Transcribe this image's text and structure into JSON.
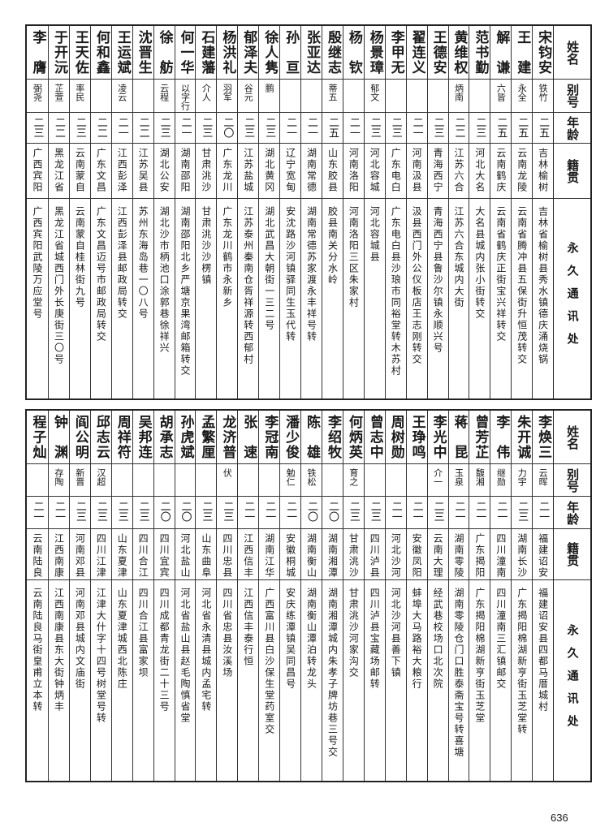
{
  "header": {
    "name": "姓名",
    "alias": "别号",
    "age": "年龄",
    "origin": "籍贯",
    "address": "永久通讯处"
  },
  "top_table": [
    {
      "name": "宋钧安",
      "alias": "铁竹",
      "age": "二五",
      "origin": "吉林榆树",
      "address": "吉林省榆树县秀水镇德庆涌烧锅"
    },
    {
      "name": "王建",
      "alias": "永全",
      "age": "二五",
      "origin": "云南龙陵",
      "address": "云南省腾冲县五保街升恒茂转交"
    },
    {
      "name": "解谦",
      "alias": "六皆",
      "age": "二五",
      "origin": "云南鹤庆",
      "address": "云南省鹤庆正街宝兴祥转交"
    },
    {
      "name": "范书勤",
      "alias": "",
      "age": "二三",
      "origin": "河北大名",
      "address": "大名县城内张小街转交"
    },
    {
      "name": "黄维权",
      "alias": "炳南",
      "age": "二二",
      "origin": "江苏六合",
      "address": "江苏六合东城内大街"
    },
    {
      "name": "王德安",
      "alias": "",
      "age": "二三",
      "origin": "青海西宁",
      "address": "青海西宁县鲁沙尔镇永顺兴号"
    },
    {
      "name": "翟连义",
      "alias": "",
      "age": "二一",
      "origin": "河南汲县",
      "address": "汲县西门外公仪板店王志刚转交"
    },
    {
      "name": "李甲无",
      "alias": "",
      "age": "二三",
      "origin": "广东电白",
      "address": "广东电白县沙琅市同裕堂转木苏村"
    },
    {
      "name": "杨景璋",
      "alias": "郁文",
      "age": "二三",
      "origin": "河北容城",
      "address": "河北容城县"
    },
    {
      "name": "杨钦",
      "alias": "",
      "age": "二一",
      "origin": "河南洛阳",
      "address": "河南洛阳三区朱家村"
    },
    {
      "name": "殷继志",
      "alias": "蒂五",
      "age": "二五",
      "origin": "山东胶县",
      "address": "胶县南关分水岭"
    },
    {
      "name": "张亚达",
      "alias": "",
      "age": "二一",
      "origin": "湖南常德",
      "address": "湖南常德苏家渡永丰祥号转"
    },
    {
      "name": "孙亘",
      "alias": "",
      "age": "二一",
      "origin": "辽宁宽甸",
      "address": "安沈路沙河镇驿同生玉代转"
    },
    {
      "name": "徐人隽",
      "alias": "鹏",
      "age": "二三",
      "origin": "湖北黄冈",
      "address": "湖北武昌大朝街一三二号"
    },
    {
      "name": "郁泽夫",
      "alias": "谷元",
      "age": "二三",
      "origin": "江苏盐城",
      "address": "江苏泰州秦南仓胥祥源转西郁村"
    },
    {
      "name": "杨洪礼",
      "alias": "羽军",
      "age": "二〇",
      "origin": "广东龙川",
      "address": "广东龙川鹤市永新乡"
    },
    {
      "name": "石建藩",
      "alias": "介人",
      "age": "二三",
      "origin": "甘肃洮沙",
      "address": "甘肃洮沙沙楞镇"
    },
    {
      "name": "何一华",
      "alias": "以字行",
      "age": "二一",
      "origin": "湖南邵阳",
      "address": "湖南邵阳北乡严塘京果湾邮箱转交"
    },
    {
      "name": "徐舫",
      "alias": "云程",
      "age": "二三",
      "origin": "湖北公安",
      "address": "湖北沙市柄池口涂郭巷徐祥兴"
    },
    {
      "name": "沈晋生",
      "alias": "",
      "age": "二二",
      "origin": "江苏吴县",
      "address": "苏州东海岛巷一〇八号"
    },
    {
      "name": "王运斌",
      "alias": "凌云",
      "age": "二一",
      "origin": "江西彭泽",
      "address": "江西彭泽县邮政局转交"
    },
    {
      "name": "何和鑫",
      "alias": "",
      "age": "二二",
      "origin": "广东文昌",
      "address": "广东文昌迈号市邮政局转交"
    },
    {
      "name": "王天佐",
      "alias": "率民",
      "age": "二三",
      "origin": "云南蒙自",
      "address": "云南蒙自桂林街九号"
    },
    {
      "name": "于开沅",
      "alias": "芷萱",
      "age": "二二",
      "origin": "黑龙江省",
      "address": "黑龙江省城西门外长庚街三〇号"
    },
    {
      "name": "李膺",
      "alias": "弼尧",
      "age": "二三",
      "origin": "广西宾阳",
      "address": "广西宾阳武陵万应堂号"
    }
  ],
  "bottom_table": [
    {
      "name": "李焕三",
      "alias": "云晖",
      "age": "二一",
      "origin": "福建诏安",
      "address": "福建诏安县四都马厝城村"
    },
    {
      "name": "朱开诚",
      "alias": "力宇",
      "age": "二三",
      "origin": "湖南长沙",
      "address": "广东揭阳棉湖新亨街玉芝堂转"
    },
    {
      "name": "李伟",
      "alias": "继勋",
      "age": "二一",
      "origin": "四川潼南",
      "address": "四川潼南三汇镇邮交"
    },
    {
      "name": "曾芳芷",
      "alias": "馥湘",
      "age": "二一",
      "origin": "广东揭阳",
      "address": "广东揭阳棉湖新亨街玉芝堂"
    },
    {
      "name": "蒋昆",
      "alias": "玉泉",
      "age": "二一",
      "origin": "湖南零陵",
      "address": "湖南零陵仓门口胜泰斋宝号转喜塘"
    },
    {
      "name": "李光中",
      "alias": "介一",
      "age": "二三",
      "origin": "云南大理",
      "address": "经武巷校场口北次院"
    },
    {
      "name": "王琤鸣",
      "alias": "",
      "age": "二一",
      "origin": "安徽凤阳",
      "address": "蚌埠大马路裕大粮行"
    },
    {
      "name": "周树勋",
      "alias": "",
      "age": "二一",
      "origin": "河北沙河",
      "address": "河北沙河县善下镇"
    },
    {
      "name": "曾志中",
      "alias": "",
      "age": "二三",
      "origin": "四川泸县",
      "address": "四川泸县宝藏场邮转"
    },
    {
      "name": "何炳英",
      "alias": "育之",
      "age": "二三",
      "origin": "甘肃洮沙",
      "address": "甘肃洮沙河家沟交"
    },
    {
      "name": "李绍牧",
      "alias": "",
      "age": "二〇",
      "origin": "湖南湘潭",
      "address": "湖南湘潭城内朱孝子牌坊巷三号交"
    },
    {
      "name": "陈雄",
      "alias": "铁松",
      "age": "二〇",
      "origin": "湖南衡山",
      "address": "湖南衡山潭泊转龙头"
    },
    {
      "name": "潘少俊",
      "alias": "勉仁",
      "age": "二一",
      "origin": "安徽桐城",
      "address": "安庆练潭镇吴同昌号"
    },
    {
      "name": "李冠南",
      "alias": "",
      "age": "二一",
      "origin": "湖南江华",
      "address": "广西富川县白沙保生堂药室交"
    },
    {
      "name": "张速",
      "alias": "",
      "age": "二一",
      "origin": "江西信丰",
      "address": "江西信丰泰行恒"
    },
    {
      "name": "龙济普",
      "alias": "伏",
      "age": "二三",
      "origin": "四川忠县",
      "address": "四川省忠县汝溪场"
    },
    {
      "name": "孟繁厘",
      "alias": "",
      "age": "二三",
      "origin": "山东曲阜",
      "address": "河北省永清县城内孟宅转"
    },
    {
      "name": "孙虎斌",
      "alias": "",
      "age": "二〇",
      "origin": "河北盐山",
      "address": "河北省盐山县赵毛陶慎省堂"
    },
    {
      "name": "胡承志",
      "alias": "",
      "age": "二〇",
      "origin": "四川宜宾",
      "address": "四川成都青龙街二十三号"
    },
    {
      "name": "吴邦连",
      "alias": "",
      "age": "二三",
      "origin": "四川合江",
      "address": "四川合江县富家坝"
    },
    {
      "name": "周祥符",
      "alias": "",
      "age": "二三",
      "origin": "山东夏津",
      "address": "山东夏津城西北陈庄"
    },
    {
      "name": "邱志云",
      "alias": "汉超",
      "age": "二三",
      "origin": "四川江津",
      "address": "江津大什字十四号树堂号转"
    },
    {
      "name": "阎公明",
      "alias": "新晋",
      "age": "二三",
      "origin": "河南邓县",
      "address": "河南邓县城内文庙街"
    },
    {
      "name": "钟渊",
      "alias": "存陶",
      "age": "二一",
      "origin": "江西南康",
      "address": "江西南康县东大街钟炳丰"
    },
    {
      "name": "程子灿",
      "alias": "",
      "age": "二一",
      "origin": "云南陆良",
      "address": "云南陆良马街皇甫立本转"
    }
  ],
  "page_number": "636"
}
